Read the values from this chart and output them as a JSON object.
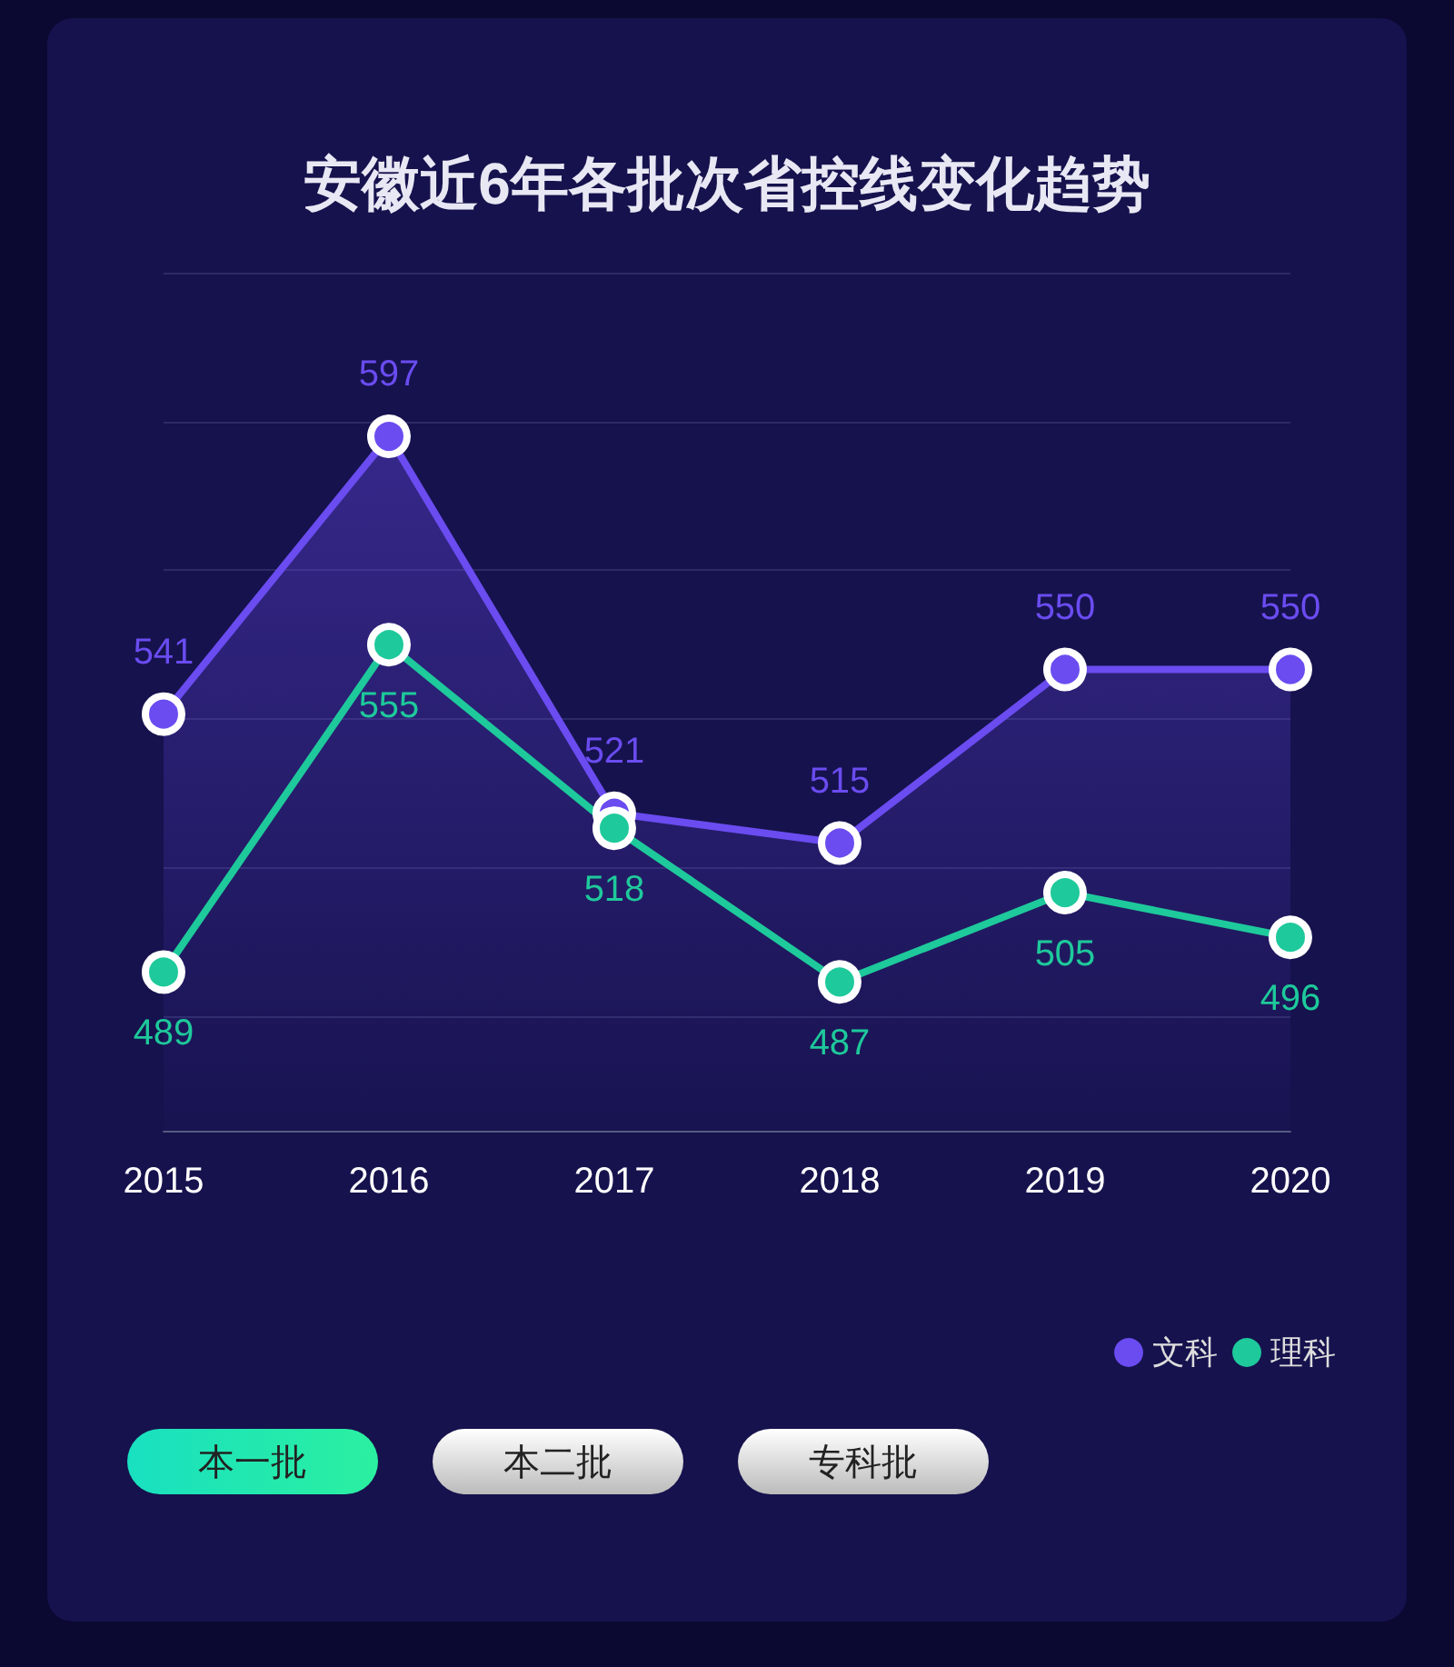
{
  "chart_data": {
    "type": "line",
    "title": "安徽近6年各批次省控线变化趋势",
    "categories": [
      "2015",
      "2016",
      "2017",
      "2018",
      "2019",
      "2020"
    ],
    "series": [
      {
        "name": "文科",
        "type": "area",
        "color": "#6a4cf0",
        "values": [
          541,
          597,
          521,
          515,
          550,
          550
        ]
      },
      {
        "name": "理科",
        "type": "line",
        "color": "#1ec99b",
        "values": [
          489,
          555,
          518,
          487,
          505,
          496
        ]
      }
    ],
    "ylim": [
      457,
      630
    ],
    "yticks": [
      {
        "value": 480,
        "label": null
      },
      {
        "value": 510,
        "label": null
      },
      {
        "value": 540,
        "label": null
      },
      {
        "value": 570,
        "label": null
      },
      {
        "value": 600,
        "label": null
      },
      {
        "value": 630,
        "label": null
      }
    ],
    "data_labels": true,
    "marker": "circle",
    "line_style": "solid",
    "grid": "y",
    "legend": "bottom right",
    "tick_labels": "x",
    "annotations": [
      "本一批",
      "本二批",
      "专科批"
    ]
  }
}
